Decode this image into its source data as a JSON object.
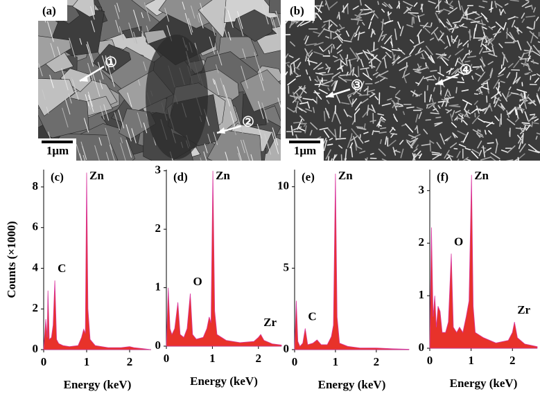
{
  "images": [
    {
      "label": "(a)",
      "scale": "1μm",
      "markers": [
        "①",
        "②"
      ]
    },
    {
      "label": "(b)",
      "scale": "1μm",
      "markers": [
        "③",
        "④"
      ]
    }
  ],
  "chart_data": [
    {
      "type": "spectrum",
      "panel_label": "(c)",
      "ylabel": "Counts (×1000)",
      "xlabel": "Energy (keV)",
      "color": "#e8322a",
      "x": [
        0,
        0.05,
        0.08,
        0.1,
        0.13,
        0.18,
        0.22,
        0.26,
        0.3,
        0.35,
        0.45,
        0.6,
        0.8,
        0.88,
        0.93,
        0.97,
        1.0,
        1.03,
        1.08,
        1.2,
        1.5,
        1.8,
        2.0,
        2.1,
        2.3,
        2.5
      ],
      "values": [
        0,
        1.5,
        0.6,
        2.9,
        0.5,
        0.6,
        1.2,
        3.4,
        0.5,
        0.3,
        0.2,
        0.15,
        0.2,
        0.6,
        1.0,
        0.8,
        8.7,
        2.0,
        0.5,
        0.2,
        0.1,
        0.1,
        0.15,
        0.1,
        0.05,
        0
      ],
      "annotations": [
        {
          "text": "C",
          "x": 0.26
        },
        {
          "text": "Zn",
          "x": 1.0
        }
      ],
      "xlim": [
        0,
        2.5
      ],
      "xticks": [
        0,
        1,
        2
      ],
      "ylim": [
        0,
        8.85
      ],
      "yticks": [
        0,
        2,
        4,
        6,
        8
      ]
    },
    {
      "type": "spectrum",
      "panel_label": "(d)",
      "xlabel": "Energy (keV)",
      "color": "#e8322a",
      "x": [
        0,
        0.04,
        0.08,
        0.12,
        0.18,
        0.25,
        0.3,
        0.38,
        0.45,
        0.52,
        0.57,
        0.65,
        0.8,
        0.88,
        0.93,
        0.97,
        1.01,
        1.05,
        1.1,
        1.3,
        1.6,
        1.9,
        2.0,
        2.05,
        2.12,
        2.3,
        2.5
      ],
      "values": [
        0,
        1.0,
        0.3,
        0.2,
        0.3,
        0.75,
        0.2,
        0.15,
        0.3,
        0.9,
        0.2,
        0.12,
        0.15,
        0.3,
        0.5,
        0.4,
        3.0,
        0.6,
        0.2,
        0.1,
        0.06,
        0.08,
        0.15,
        0.2,
        0.1,
        0.04,
        0.02
      ],
      "annotations": [
        {
          "text": "O",
          "x": 0.52
        },
        {
          "text": "Zn",
          "x": 1.01
        },
        {
          "text": "Zr",
          "x": 2.05
        }
      ],
      "xlim": [
        0,
        2.5
      ],
      "xticks": [
        0,
        1,
        2
      ],
      "ylim": [
        0,
        3.02
      ],
      "yticks": [
        0,
        1,
        2,
        3
      ]
    },
    {
      "type": "spectrum",
      "panel_label": "(e)",
      "xlabel": "Energy (keV)",
      "color": "#e8322a",
      "x": [
        0,
        0.04,
        0.08,
        0.13,
        0.2,
        0.26,
        0.32,
        0.45,
        0.55,
        0.65,
        0.8,
        0.9,
        0.95,
        1.0,
        1.04,
        1.1,
        1.3,
        1.6,
        2.0,
        2.4,
        2.8
      ],
      "values": [
        0,
        3.0,
        0.5,
        0.2,
        0.4,
        1.3,
        0.3,
        0.4,
        0.6,
        0.3,
        0.3,
        0.8,
        1.5,
        10.8,
        2.0,
        0.4,
        0.2,
        0.1,
        0.1,
        0.05,
        0.02
      ],
      "annotations": [
        {
          "text": "C",
          "x": 0.26
        },
        {
          "text": "Zn",
          "x": 1.0
        }
      ],
      "xlim": [
        0,
        2.8
      ],
      "xticks": [
        0,
        1,
        2
      ],
      "ylim": [
        0,
        11.05
      ],
      "yticks": [
        0,
        5,
        10
      ]
    },
    {
      "type": "spectrum",
      "panel_label": "(f)",
      "xlabel": "Energy (keV)",
      "color": "#e8322a",
      "x": [
        0,
        0.04,
        0.08,
        0.12,
        0.16,
        0.2,
        0.25,
        0.3,
        0.38,
        0.45,
        0.52,
        0.57,
        0.65,
        0.72,
        0.8,
        0.88,
        0.95,
        1.01,
        1.05,
        1.1,
        1.3,
        1.6,
        1.9,
        2.0,
        2.05,
        2.12,
        2.3,
        2.6
      ],
      "values": [
        0,
        2.3,
        0.6,
        1.0,
        0.4,
        0.8,
        0.7,
        0.3,
        0.3,
        0.5,
        1.8,
        0.4,
        0.3,
        0.4,
        0.3,
        0.6,
        0.9,
        3.3,
        0.8,
        0.3,
        0.2,
        0.1,
        0.15,
        0.3,
        0.5,
        0.2,
        0.08,
        0.03
      ],
      "annotations": [
        {
          "text": "O",
          "x": 0.52
        },
        {
          "text": "Zn",
          "x": 1.01
        },
        {
          "text": "Zr",
          "x": 2.05
        }
      ],
      "xlim": [
        0,
        2.6
      ],
      "xticks": [
        0,
        1,
        2
      ],
      "ylim": [
        0,
        3.4
      ],
      "yticks": [
        0,
        1,
        2,
        3
      ]
    }
  ]
}
